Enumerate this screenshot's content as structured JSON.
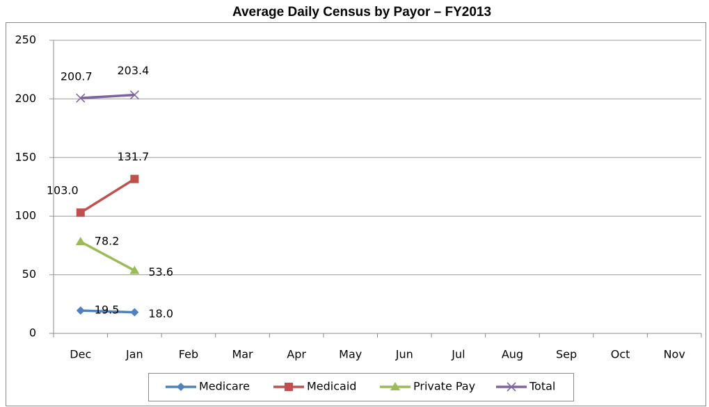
{
  "chart_data": {
    "type": "line",
    "title": "Average Daily Census by Payor – FY2013",
    "categories": [
      "Dec",
      "Jan",
      "Feb",
      "Mar",
      "Apr",
      "May",
      "Jun",
      "Jul",
      "Aug",
      "Sep",
      "Oct",
      "Nov"
    ],
    "series": [
      {
        "name": "Medicare",
        "color": "#4f81bd",
        "values": [
          19.5,
          18.0,
          null,
          null,
          null,
          null,
          null,
          null,
          null,
          null,
          null,
          null
        ],
        "value_labels": [
          "19.5",
          "18.0",
          null,
          null,
          null,
          null,
          null,
          null,
          null,
          null,
          null,
          null
        ]
      },
      {
        "name": "Medicaid",
        "color": "#c0504d",
        "values": [
          103.0,
          131.7,
          null,
          null,
          null,
          null,
          null,
          null,
          null,
          null,
          null,
          null
        ],
        "value_labels": [
          "103.0",
          "131.7",
          null,
          null,
          null,
          null,
          null,
          null,
          null,
          null,
          null,
          null
        ]
      },
      {
        "name": "Private Pay",
        "color": "#9bbb59",
        "values": [
          78.2,
          53.6,
          null,
          null,
          null,
          null,
          null,
          null,
          null,
          null,
          null,
          null
        ],
        "value_labels": [
          "78.2",
          "53.6",
          null,
          null,
          null,
          null,
          null,
          null,
          null,
          null,
          null,
          null
        ]
      },
      {
        "name": "Total",
        "color": "#8064a2",
        "values": [
          200.7,
          203.4,
          null,
          null,
          null,
          null,
          null,
          null,
          null,
          null,
          null,
          null
        ],
        "value_labels": [
          "200.7",
          "203.4",
          null,
          null,
          null,
          null,
          null,
          null,
          null,
          null,
          null,
          null
        ]
      }
    ],
    "ylim": [
      0,
      250
    ],
    "yticks": [
      0,
      50,
      100,
      150,
      200,
      250
    ],
    "grid": true,
    "legend": "bottom"
  }
}
